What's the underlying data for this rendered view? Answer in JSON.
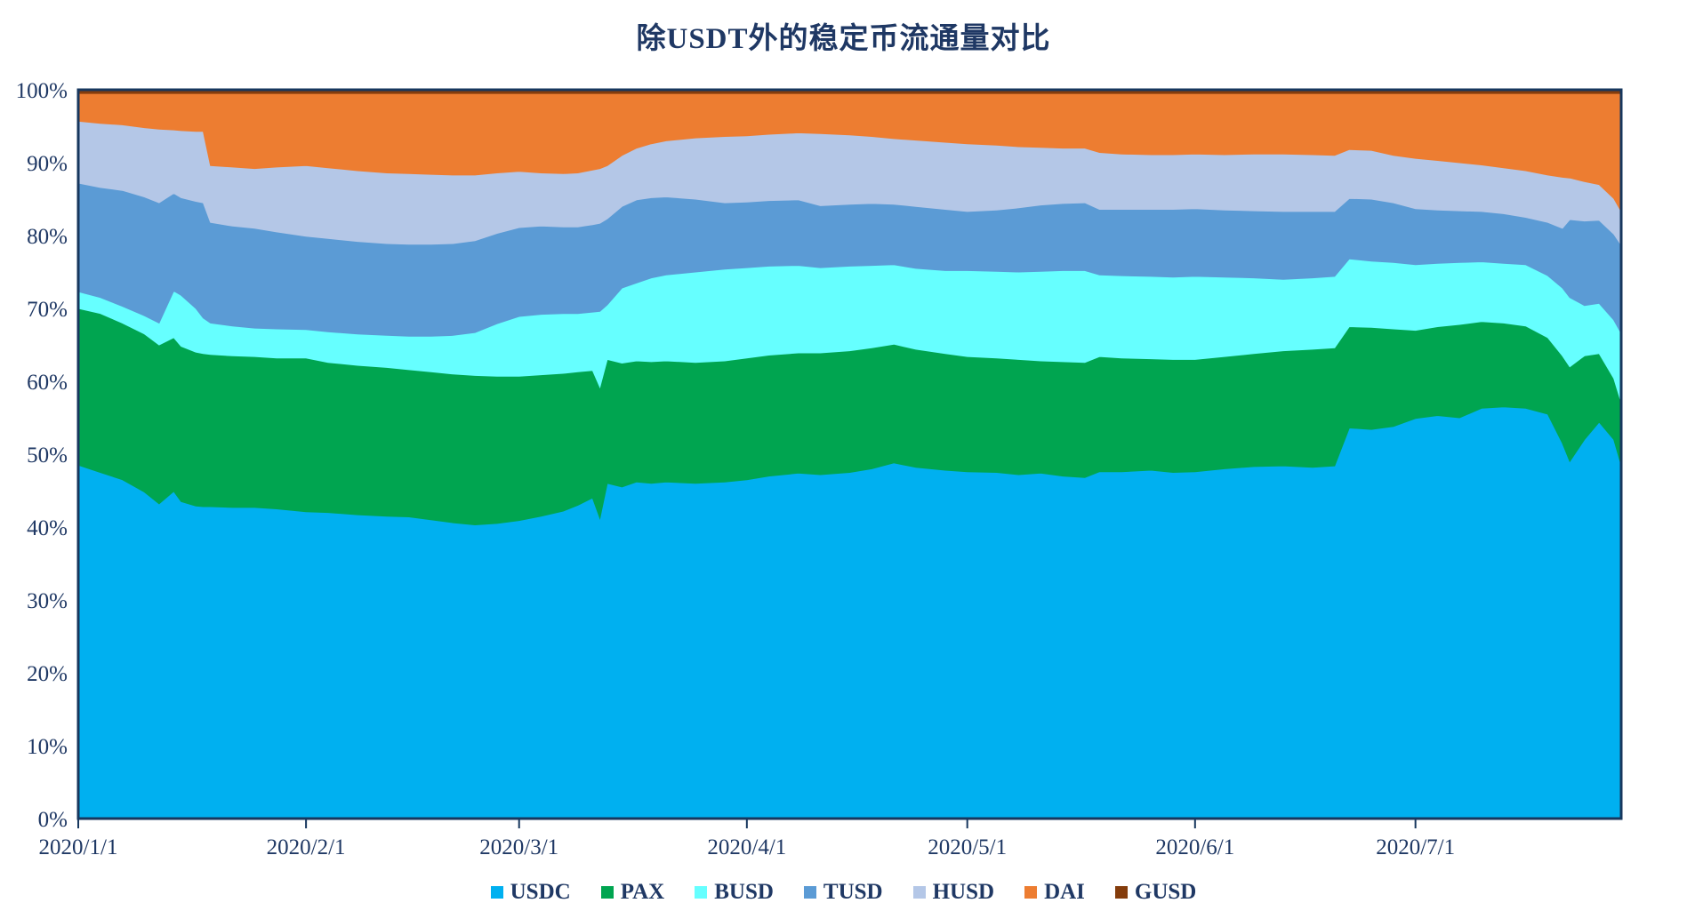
{
  "colors": {
    "text": "#1F3864",
    "axis": "#17375E",
    "background": "#FFFFFF"
  },
  "chart_data": {
    "type": "area",
    "stacked_percent": true,
    "grid": false,
    "legend_position": "bottom",
    "title": "除USDT外的稳定币流通量对比",
    "x_axis": {
      "unit": "date",
      "start_label": "2020/1/1",
      "total_days": 210,
      "tick_days": [
        0,
        31,
        60,
        91,
        121,
        152,
        182
      ],
      "tick_labels": [
        "2020/1/1",
        "2020/2/1",
        "2020/3/1",
        "2020/4/1",
        "2020/5/1",
        "2020/6/1",
        "2020/7/1"
      ]
    },
    "y_axis": {
      "min": 0,
      "max": 100,
      "tick_step": 10,
      "labels": [
        "0%",
        "10%",
        "20%",
        "30%",
        "40%",
        "50%",
        "60%",
        "70%",
        "80%",
        "90%",
        "100%"
      ]
    },
    "sample_days": [
      0,
      3,
      6,
      9,
      11,
      13,
      14,
      16,
      17,
      18,
      21,
      24,
      27,
      31,
      34,
      38,
      42,
      45,
      48,
      51,
      54,
      57,
      60,
      63,
      66,
      68,
      70,
      71,
      72,
      74,
      76,
      78,
      80,
      84,
      88,
      91,
      94,
      98,
      101,
      105,
      108,
      111,
      114,
      118,
      121,
      125,
      128,
      131,
      134,
      137,
      139,
      142,
      146,
      149,
      152,
      156,
      160,
      164,
      168,
      171,
      173,
      176,
      179,
      182,
      185,
      188,
      191,
      194,
      197,
      200,
      202,
      203,
      205,
      207,
      209,
      210
    ],
    "series": [
      {
        "name": "USDC",
        "color": "#00B0F0",
        "values": [
          48.5,
          47.5,
          46.5,
          44.8,
          43.2,
          44.9,
          43.5,
          42.9,
          42.8,
          42.8,
          42.7,
          42.7,
          42.5,
          42.1,
          42.0,
          41.7,
          41.5,
          41.4,
          41.0,
          40.6,
          40.3,
          40.5,
          40.9,
          41.5,
          42.2,
          43.0,
          44.0,
          41.2,
          46.0,
          45.5,
          46.2,
          46.0,
          46.2,
          46.0,
          46.2,
          46.5,
          47.0,
          47.4,
          47.2,
          47.5,
          48.0,
          48.8,
          48.2,
          47.8,
          47.6,
          47.5,
          47.2,
          47.4,
          47.0,
          46.8,
          47.6,
          47.6,
          47.8,
          47.5,
          47.6,
          48.0,
          48.3,
          48.4,
          48.2,
          48.4,
          53.6,
          53.4,
          53.8,
          54.9,
          55.3,
          55.0,
          56.3,
          56.5,
          56.3,
          55.5,
          51.5,
          49.0,
          52.0,
          54.4,
          52.0,
          48.5
        ]
      },
      {
        "name": "PAX",
        "color": "#00A550",
        "values": [
          21.5,
          21.8,
          21.5,
          21.7,
          21.8,
          21.1,
          21.3,
          21.1,
          21.0,
          20.9,
          20.8,
          20.7,
          20.7,
          21.1,
          20.6,
          20.5,
          20.4,
          20.2,
          20.3,
          20.4,
          20.5,
          20.2,
          19.8,
          19.4,
          18.9,
          18.3,
          17.5,
          18.0,
          17.0,
          17.0,
          16.6,
          16.7,
          16.6,
          16.6,
          16.6,
          16.7,
          16.6,
          16.5,
          16.7,
          16.7,
          16.6,
          16.3,
          16.2,
          16.0,
          15.8,
          15.7,
          15.8,
          15.4,
          15.7,
          15.8,
          15.8,
          15.6,
          15.3,
          15.5,
          15.4,
          15.4,
          15.5,
          15.8,
          16.2,
          16.2,
          13.9,
          14.0,
          13.4,
          12.1,
          12.2,
          12.8,
          11.9,
          11.5,
          11.3,
          10.5,
          12.0,
          13.0,
          11.5,
          9.4,
          8.4,
          8.6
        ]
      },
      {
        "name": "BUSD",
        "color": "#66FFFF",
        "values": [
          2.3,
          2.2,
          2.3,
          2.5,
          3.0,
          6.4,
          7.0,
          6.0,
          4.9,
          4.3,
          4.1,
          3.9,
          4.0,
          3.9,
          4.2,
          4.3,
          4.4,
          4.6,
          4.9,
          5.3,
          5.9,
          7.2,
          8.2,
          8.3,
          8.2,
          8.0,
          8.0,
          10.4,
          7.5,
          10.3,
          10.7,
          11.5,
          11.8,
          12.4,
          12.6,
          12.4,
          12.2,
          12.0,
          11.7,
          11.6,
          11.3,
          10.9,
          11.1,
          11.4,
          11.8,
          11.9,
          12.0,
          12.3,
          12.5,
          12.6,
          11.2,
          11.3,
          11.3,
          11.3,
          11.4,
          10.9,
          10.4,
          9.8,
          9.8,
          9.8,
          9.3,
          9.1,
          9.1,
          9.0,
          8.7,
          8.5,
          8.2,
          8.2,
          8.4,
          8.5,
          9.3,
          9.5,
          6.9,
          6.9,
          8.0,
          9.5
        ]
      },
      {
        "name": "TUSD",
        "color": "#5B9BD5",
        "values": [
          14.9,
          15.1,
          15.9,
          16.3,
          16.5,
          13.4,
          13.4,
          14.7,
          15.8,
          13.8,
          13.7,
          13.7,
          13.3,
          12.8,
          12.8,
          12.7,
          12.6,
          12.6,
          12.6,
          12.6,
          12.6,
          12.4,
          12.2,
          12.1,
          11.9,
          11.9,
          12.0,
          12.1,
          11.8,
          11.2,
          11.4,
          11.0,
          10.7,
          10.0,
          9.1,
          9.0,
          9.0,
          9.0,
          8.5,
          8.5,
          8.5,
          8.3,
          8.5,
          8.4,
          8.1,
          8.4,
          8.8,
          9.1,
          9.2,
          9.3,
          9.0,
          9.1,
          9.2,
          9.3,
          9.3,
          9.2,
          9.2,
          9.3,
          9.1,
          8.9,
          8.3,
          8.5,
          8.2,
          7.7,
          7.3,
          7.1,
          6.9,
          6.8,
          6.5,
          7.3,
          8.2,
          10.7,
          11.6,
          11.4,
          11.8,
          12.1
        ]
      },
      {
        "name": "HUSD",
        "color": "#B4C7E7",
        "values": [
          8.5,
          8.8,
          9.0,
          9.5,
          10.1,
          8.7,
          9.2,
          9.6,
          9.8,
          7.8,
          8.1,
          8.2,
          8.9,
          9.7,
          9.7,
          9.7,
          9.7,
          9.7,
          9.6,
          9.4,
          9.0,
          8.3,
          7.7,
          7.3,
          7.3,
          7.4,
          7.5,
          7.5,
          7.3,
          7.0,
          7.1,
          7.4,
          7.7,
          8.4,
          9.1,
          9.1,
          9.1,
          9.2,
          9.9,
          9.5,
          9.2,
          9.0,
          9.1,
          9.2,
          9.3,
          8.9,
          8.4,
          7.9,
          7.6,
          7.5,
          7.8,
          7.6,
          7.5,
          7.5,
          7.5,
          7.6,
          7.8,
          7.9,
          7.8,
          7.7,
          6.7,
          6.7,
          6.5,
          6.9,
          6.8,
          6.6,
          6.4,
          6.3,
          6.4,
          6.5,
          7.0,
          5.7,
          5.4,
          4.9,
          4.9,
          4.6
        ]
      },
      {
        "name": "DAI",
        "color": "#ED7D31",
        "values": [
          3.8,
          4.1,
          4.3,
          4.7,
          4.9,
          5.0,
          5.1,
          5.2,
          5.2,
          9.9,
          10.1,
          10.3,
          10.1,
          9.9,
          10.2,
          10.6,
          10.9,
          11.0,
          11.1,
          11.2,
          11.2,
          10.9,
          10.7,
          10.9,
          11.0,
          10.9,
          10.5,
          10.3,
          9.9,
          8.5,
          7.5,
          6.9,
          6.5,
          6.1,
          5.9,
          5.8,
          5.6,
          5.4,
          5.5,
          5.7,
          5.9,
          6.2,
          6.4,
          6.7,
          6.9,
          7.1,
          7.3,
          7.4,
          7.5,
          7.5,
          8.1,
          8.3,
          8.4,
          8.4,
          8.3,
          8.4,
          8.3,
          8.3,
          8.4,
          8.5,
          7.7,
          7.8,
          8.5,
          8.9,
          9.2,
          9.5,
          9.8,
          10.2,
          10.6,
          11.2,
          11.5,
          11.6,
          12.1,
          12.5,
          14.4,
          16.2
        ]
      },
      {
        "name": "GUSD",
        "color": "#843C0C",
        "values": [
          0.5,
          0.5,
          0.5,
          0.5,
          0.5,
          0.5,
          0.5,
          0.5,
          0.5,
          0.5,
          0.5,
          0.5,
          0.5,
          0.5,
          0.5,
          0.5,
          0.5,
          0.5,
          0.5,
          0.5,
          0.5,
          0.5,
          0.5,
          0.5,
          0.5,
          0.5,
          0.5,
          0.5,
          0.5,
          0.5,
          0.5,
          0.5,
          0.5,
          0.5,
          0.5,
          0.5,
          0.5,
          0.5,
          0.5,
          0.5,
          0.5,
          0.5,
          0.5,
          0.5,
          0.5,
          0.5,
          0.5,
          0.5,
          0.5,
          0.5,
          0.5,
          0.5,
          0.5,
          0.5,
          0.5,
          0.5,
          0.5,
          0.5,
          0.5,
          0.5,
          0.5,
          0.5,
          0.5,
          0.5,
          0.5,
          0.5,
          0.5,
          0.5,
          0.5,
          0.5,
          0.5,
          0.5,
          0.5,
          0.5,
          0.5,
          0.5
        ]
      }
    ]
  }
}
